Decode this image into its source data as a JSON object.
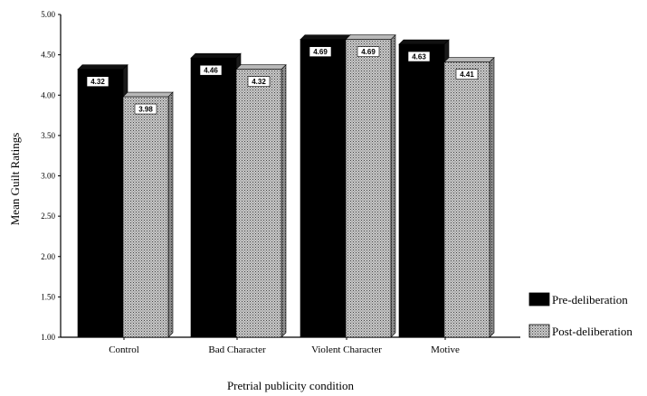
{
  "chart_data": {
    "type": "bar",
    "categories": [
      "Control",
      "Bad Character",
      "Violent Character",
      "Motive"
    ],
    "series": [
      {
        "name": "Pre-deliberation",
        "values": [
          4.32,
          4.46,
          4.69,
          4.63
        ],
        "color": "#000000"
      },
      {
        "name": "Post-deliberation",
        "values": [
          3.98,
          4.32,
          4.69,
          4.41
        ],
        "color": "#9a9a9a"
      }
    ],
    "data_labels": [
      [
        "4.32",
        "4.46",
        "4.69",
        "4.63"
      ],
      [
        "3.98",
        "4.32",
        "4.69",
        "4.41"
      ]
    ],
    "title": "",
    "xlabel": "Pretrial publicity condition",
    "ylabel": "Mean Guilt Ratings",
    "ylim": [
      1.0,
      5.0
    ],
    "yticks": [
      "1.00",
      "1.50",
      "2.00",
      "2.50",
      "3.00",
      "3.50",
      "4.00",
      "4.50",
      "5.00"
    ],
    "legend_position": "bottom-right",
    "grid": false
  }
}
